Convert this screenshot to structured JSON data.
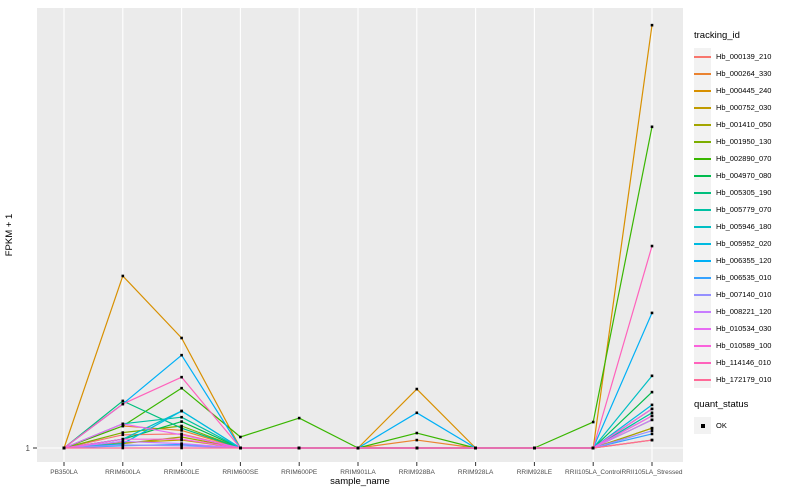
{
  "axes": {
    "y_title": "FPKM + 1",
    "x_title": "sample_name",
    "y_tick_labels": [
      "1"
    ],
    "x_tick_labels": [
      "PB350LA",
      "RRIM600LA",
      "RRIM600LE",
      "RRIM600SE",
      "RRIM600PE",
      "RRIM901LA",
      "RRIM928BA",
      "RRIM928LA",
      "RRIM928LE",
      "RRII105LA_Control",
      "RRII105LA_Stressed"
    ]
  },
  "legend": {
    "tracking_title": "tracking_id",
    "quant_title": "quant_status",
    "quant_items": [
      {
        "label": "OK",
        "marker": "black-square"
      }
    ]
  },
  "style_colors": {
    "panel_bg": "#EBEBEB",
    "grid": "#FFFFFF",
    "tick_text": "#4D4D4D",
    "tick_mark": "#333333",
    "marker": "#000000"
  },
  "chart_data": {
    "type": "line",
    "title": "",
    "xlabel": "sample_name",
    "ylabel": "FPKM + 1",
    "legend_position": "right",
    "grid": "white vertical gridline at each sample; horizontal white gridline at y tick 1",
    "marker_note": "every data point carries a small black square (quant_status = OK)",
    "y_axis_note": "only the tick '1' (baseline) is labeled; series values are fractions of panel height above the y=1 baseline (0 = FPKM+1 of 1)",
    "categories": [
      "PB350LA",
      "RRIM600LA",
      "RRIM600LE",
      "RRIM600SE",
      "RRIM600PE",
      "RRIM901LA",
      "RRIM928BA",
      "RRIM928LA",
      "RRIM928LE",
      "RRII105LA_Control",
      "RRII105LA_Stressed"
    ],
    "series": [
      {
        "name": "Hb_000139_210",
        "color": "#F8766D",
        "values": [
          0,
          0.03,
          0.032,
          0,
          0,
          0,
          0,
          0,
          0,
          0,
          0.045
        ]
      },
      {
        "name": "Hb_000264_330",
        "color": "#EA8331",
        "values": [
          0,
          0.05,
          0.04,
          0,
          0,
          0,
          0.018,
          0,
          0,
          0,
          0.073
        ]
      },
      {
        "name": "Hb_000445_240",
        "color": "#D89000",
        "values": [
          0,
          0.391,
          0.25,
          0,
          0,
          0,
          0.134,
          0,
          0,
          0,
          0.961
        ]
      },
      {
        "name": "Hb_000752_030",
        "color": "#C09B00",
        "values": [
          0,
          0.012,
          0.018,
          0,
          0,
          0,
          0,
          0,
          0,
          0,
          0.018
        ]
      },
      {
        "name": "Hb_001410_050",
        "color": "#A3A500",
        "values": [
          0,
          0.01,
          0.025,
          0,
          0,
          0,
          0,
          0,
          0,
          0,
          0.045
        ]
      },
      {
        "name": "Hb_001950_130",
        "color": "#7CAE00",
        "values": [
          0,
          0.035,
          0.05,
          0,
          0,
          0,
          0,
          0,
          0,
          0,
          0.064
        ]
      },
      {
        "name": "Hb_002890_070",
        "color": "#39B600",
        "values": [
          0,
          0.05,
          0.136,
          0.025,
          0.068,
          0,
          0.034,
          0,
          0,
          0.059,
          0.73
        ]
      },
      {
        "name": "Hb_004970_080",
        "color": "#00BB4E",
        "values": [
          0,
          0.02,
          0.06,
          0,
          0,
          0,
          0,
          0,
          0,
          0,
          0.127
        ]
      },
      {
        "name": "Hb_005305_190",
        "color": "#00BF7D",
        "values": [
          0,
          0.107,
          0.045,
          0,
          0,
          0,
          0,
          0,
          0,
          0,
          0.089
        ]
      },
      {
        "name": "Hb_005779_070",
        "color": "#00C1A3",
        "values": [
          0,
          0.055,
          0.07,
          0,
          0,
          0,
          0,
          0,
          0,
          0,
          0.08
        ]
      },
      {
        "name": "Hb_005946_180",
        "color": "#00BFC4",
        "values": [
          0,
          0.02,
          0.084,
          0,
          0,
          0,
          0,
          0,
          0,
          0,
          0.164
        ]
      },
      {
        "name": "Hb_005952_020",
        "color": "#00BAE0",
        "values": [
          0,
          0.01,
          0.084,
          0,
          0,
          0,
          0,
          0,
          0,
          0,
          0.098
        ]
      },
      {
        "name": "Hb_006355_120",
        "color": "#00B0F6",
        "values": [
          0,
          0.1,
          0.211,
          0,
          0,
          0,
          0.08,
          0,
          0,
          0,
          0.307
        ]
      },
      {
        "name": "Hb_006535_010",
        "color": "#35A2FF",
        "values": [
          0,
          0.005,
          0.008,
          0,
          0,
          0,
          0,
          0,
          0,
          0,
          0.032
        ]
      },
      {
        "name": "Hb_007140_010",
        "color": "#9590FF",
        "values": [
          0,
          0.007,
          0.005,
          0,
          0,
          0,
          0,
          0,
          0,
          0,
          0.039
        ]
      },
      {
        "name": "Hb_008221_120",
        "color": "#C77CFF",
        "values": [
          0,
          0.015,
          0.01,
          0,
          0,
          0,
          0,
          0,
          0,
          0,
          0.064
        ]
      },
      {
        "name": "Hb_010534_030",
        "color": "#E76BF3",
        "values": [
          0,
          0.055,
          0.03,
          0,
          0,
          0,
          0,
          0,
          0,
          0,
          0.073
        ]
      },
      {
        "name": "Hb_010589_100",
        "color": "#FA62DB",
        "values": [
          0,
          0.02,
          0.02,
          0,
          0,
          0,
          0,
          0,
          0,
          0,
          0.089
        ]
      },
      {
        "name": "Hb_114146_010",
        "color": "#FF62BC",
        "values": [
          0,
          0.1,
          0.161,
          0,
          0,
          0,
          0,
          0,
          0,
          0,
          0.459
        ]
      },
      {
        "name": "Hb_172179_010",
        "color": "#FF6A98",
        "values": [
          0,
          0,
          0,
          0,
          0,
          0,
          0,
          0,
          0,
          0,
          0.018
        ]
      }
    ]
  }
}
